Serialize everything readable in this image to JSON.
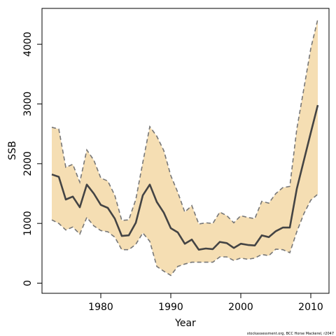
{
  "chart_data": {
    "type": "area",
    "xlabel": "Year",
    "ylabel": "SSB",
    "xlim": [
      1971.6,
      2012.6
    ],
    "ylim": [
      -170,
      4600
    ],
    "xticks": [
      1980,
      1990,
      2000,
      2010
    ],
    "yticks": [
      0,
      1000,
      2000,
      3000,
      4000
    ],
    "x": [
      1973,
      1974,
      1975,
      1976,
      1977,
      1978,
      1979,
      1980,
      1981,
      1982,
      1983,
      1984,
      1985,
      1986,
      1987,
      1988,
      1989,
      1990,
      1991,
      1992,
      1993,
      1994,
      1995,
      1996,
      1997,
      1998,
      1999,
      2000,
      2001,
      2002,
      2003,
      2004,
      2005,
      2006,
      2007,
      2008,
      2009,
      2010,
      2011
    ],
    "series": [
      {
        "role": "estimate",
        "values": [
          1820,
          1780,
          1400,
          1450,
          1270,
          1650,
          1500,
          1310,
          1260,
          1080,
          790,
          800,
          1010,
          1470,
          1650,
          1360,
          1180,
          920,
          850,
          660,
          730,
          560,
          580,
          570,
          690,
          670,
          590,
          660,
          640,
          630,
          800,
          770,
          870,
          930,
          930,
          1580,
          2050,
          2520,
          2980
        ]
      },
      {
        "role": "upper",
        "values": [
          2610,
          2580,
          1940,
          1990,
          1690,
          2230,
          2060,
          1760,
          1710,
          1470,
          1050,
          1060,
          1400,
          2020,
          2620,
          2460,
          2220,
          1800,
          1520,
          1190,
          1300,
          990,
          1010,
          1000,
          1190,
          1130,
          1010,
          1130,
          1100,
          1080,
          1370,
          1340,
          1500,
          1600,
          1620,
          2580,
          3250,
          3930,
          4420
        ]
      },
      {
        "role": "lower",
        "values": [
          1060,
          1000,
          890,
          940,
          820,
          1100,
          960,
          880,
          860,
          770,
          560,
          560,
          650,
          840,
          700,
          280,
          200,
          130,
          280,
          320,
          350,
          350,
          350,
          350,
          440,
          440,
          380,
          420,
          400,
          420,
          480,
          460,
          570,
          560,
          510,
          860,
          1160,
          1390,
          1490
        ]
      }
    ],
    "colors": {
      "band": "#f5deb3",
      "estimate": "#444444",
      "bounds": "#777777"
    },
    "grid": false,
    "legend": "none",
    "source_note": "stockassessment.org, BCC Horse Mackerel, r2047"
  }
}
